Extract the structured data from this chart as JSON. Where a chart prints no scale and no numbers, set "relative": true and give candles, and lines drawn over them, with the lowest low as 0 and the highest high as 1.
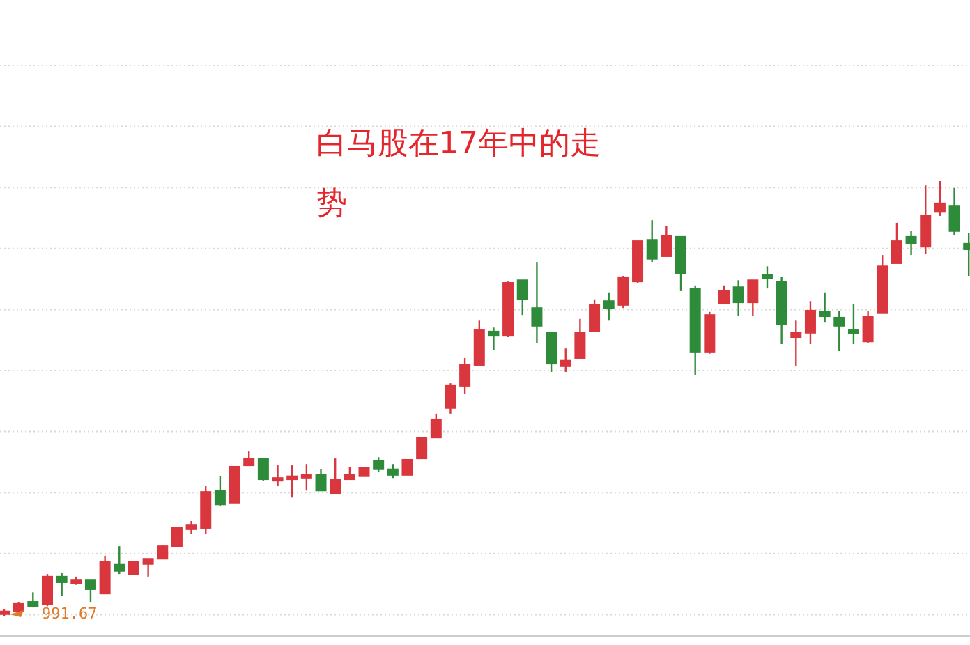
{
  "chart_data": {
    "type": "candlestick",
    "title": "白马股在17年中的走势",
    "relative": true,
    "grid": "y",
    "annotations": [
      "991.67"
    ],
    "categories": [
      null,
      null,
      null,
      null,
      null,
      null,
      null,
      null,
      null,
      null,
      null,
      null,
      null,
      null,
      null,
      null,
      null,
      null,
      null,
      null,
      null,
      null,
      null,
      null,
      null,
      null,
      null,
      null,
      null,
      null,
      null,
      null,
      null,
      null,
      null,
      null,
      null,
      null,
      null,
      null,
      null,
      null,
      null,
      null,
      null,
      null,
      null,
      null,
      null,
      null,
      null,
      null,
      null,
      null,
      null,
      null,
      null,
      null,
      null,
      null,
      null,
      null,
      null,
      null,
      null,
      null,
      null,
      null
    ],
    "ohlc": [
      [
        0.006,
        0.016,
        0,
        0.01
      ],
      [
        0.01,
        0.032,
        0.006,
        0.029
      ],
      [
        0.032,
        0.054,
        0.019,
        0.022
      ],
      [
        0.026,
        0.096,
        0.022,
        0.09
      ],
      [
        0.09,
        0.099,
        0.045,
        0.077
      ],
      [
        0.074,
        0.09,
        0.071,
        0.083
      ],
      [
        0.083,
        0.083,
        0.032,
        0.061
      ],
      [
        0.051,
        0.138,
        0.051,
        0.125
      ],
      [
        0.119,
        0.16,
        0.096,
        0.103
      ],
      [
        0.096,
        0.125,
        0.096,
        0.125
      ],
      [
        0.119,
        0.131,
        0.09,
        0.131
      ],
      [
        0.131,
        0.163,
        0.131,
        0.16
      ],
      [
        0.16,
        0.205,
        0.16,
        0.202
      ],
      [
        0.199,
        0.218,
        0.189,
        0.208
      ],
      [
        0.202,
        0.298,
        0.189,
        0.285
      ],
      [
        0.288,
        0.321,
        0.253,
        0.256
      ],
      [
        0.26,
        0.343,
        0.26,
        0.343
      ],
      [
        0.346,
        0.378,
        0.346,
        0.362
      ],
      [
        0.362,
        0.362,
        0.311,
        0.314
      ],
      [
        0.311,
        0.346,
        0.298,
        0.317
      ],
      [
        0.314,
        0.346,
        0.272,
        0.321
      ],
      [
        0.321,
        0.349,
        0.288,
        0.324
      ],
      [
        0.324,
        0.337,
        0.288,
        0.288
      ],
      [
        0.282,
        0.362,
        0.282,
        0.314
      ],
      [
        0.314,
        0.343,
        0.314,
        0.324
      ],
      [
        0.321,
        0.34,
        0.321,
        0.34
      ],
      [
        0.356,
        0.365,
        0.33,
        0.337
      ],
      [
        0.337,
        0.349,
        0.317,
        0.324
      ],
      [
        0.324,
        0.359,
        0.324,
        0.359
      ],
      [
        0.362,
        0.41,
        0.362,
        0.41
      ],
      [
        0.41,
        0.465,
        0.41,
        0.452
      ],
      [
        0.478,
        0.535,
        0.465,
        0.529
      ],
      [
        0.529,
        0.593,
        0.51,
        0.577
      ],
      [
        0.577,
        0.679,
        0.577,
        0.657
      ],
      [
        0.654,
        0.663,
        0.612,
        0.644
      ],
      [
        0.644,
        0.769,
        0.641,
        0.766
      ],
      [
        0.772,
        0.772,
        0.692,
        0.728
      ],
      [
        0.708,
        0.814,
        0.628,
        0.667
      ],
      [
        0.651,
        0.651,
        0.561,
        0.58
      ],
      [
        0.574,
        0.615,
        0.561,
        0.587
      ],
      [
        0.593,
        0.683,
        0.593,
        0.651
      ],
      [
        0.654,
        0.728,
        0.654,
        0.715
      ],
      [
        0.724,
        0.744,
        0.679,
        0.708
      ],
      [
        0.715,
        0.782,
        0.708,
        0.779
      ],
      [
        0.769,
        0.862,
        0.766,
        0.862
      ],
      [
        0.865,
        0.91,
        0.814,
        0.821
      ],
      [
        0.827,
        0.897,
        0.827,
        0.875
      ],
      [
        0.872,
        0.872,
        0.747,
        0.788
      ],
      [
        0.753,
        0.76,
        0.554,
        0.606
      ],
      [
        0.606,
        0.699,
        0.603,
        0.692
      ],
      [
        0.718,
        0.76,
        0.718,
        0.747
      ],
      [
        0.756,
        0.772,
        0.689,
        0.721
      ],
      [
        0.721,
        0.772,
        0.689,
        0.772
      ],
      [
        0.785,
        0.804,
        0.753,
        0.776
      ],
      [
        0.769,
        0.779,
        0.625,
        0.67
      ],
      [
        0.641,
        0.679,
        0.574,
        0.651
      ],
      [
        0.651,
        0.724,
        0.625,
        0.702
      ],
      [
        0.699,
        0.744,
        0.676,
        0.689
      ],
      [
        0.686,
        0.702,
        0.609,
        0.667
      ],
      [
        0.657,
        0.718,
        0.625,
        0.654
      ],
      [
        0.631,
        0.702,
        0.628,
        0.689
      ],
      [
        0.696,
        0.83,
        0.696,
        0.804
      ],
      [
        0.811,
        0.904,
        0.811,
        0.862
      ],
      [
        0.872,
        0.885,
        0.83,
        0.856
      ],
      [
        0.849,
        0.99,
        0.833,
        0.92
      ],
      [
        0.929,
        1,
        0.92,
        0.949
      ],
      [
        0.942,
        0.984,
        0.875,
        0.885
      ],
      [
        0.856,
        0.881,
        0.782,
        0.843
      ]
    ]
  }
}
